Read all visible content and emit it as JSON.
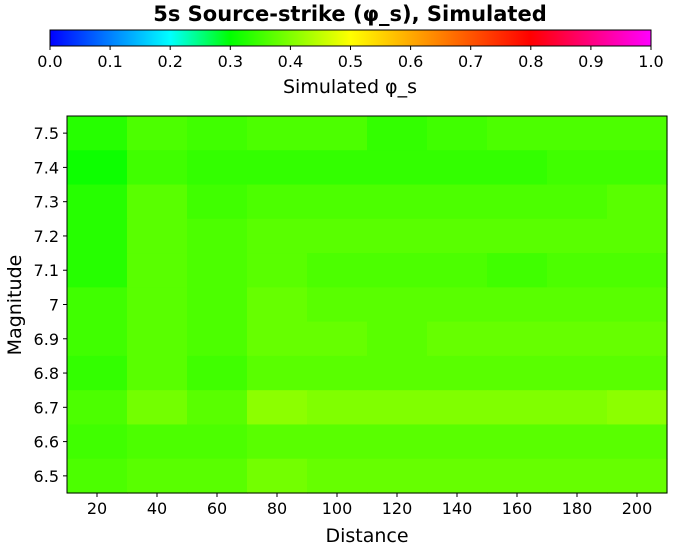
{
  "chart_data": {
    "type": "heatmap",
    "title": "5s Source-strike (φ_s), Simulated",
    "xlabel": "Distance",
    "ylabel": "Magnitude",
    "colorbar_label": "Simulated φ_s",
    "colorbar_range": [
      0.0,
      1.0
    ],
    "colorbar_ticks": [
      "0.0",
      "0.1",
      "0.2",
      "0.3",
      "0.4",
      "0.5",
      "0.6",
      "0.7",
      "0.8",
      "0.9",
      "1.0"
    ],
    "colormap": "hsv (blue to magenta)",
    "x": [
      20,
      40,
      60,
      80,
      100,
      120,
      140,
      160,
      180,
      200
    ],
    "y": [
      7.5,
      7.4,
      7.3,
      7.2,
      7.1,
      7.0,
      6.9,
      6.8,
      6.7,
      6.6,
      6.5
    ],
    "x_tick_labels": [
      "20",
      "40",
      "60",
      "80",
      "100",
      "120",
      "140",
      "160",
      "180",
      "200"
    ],
    "y_tick_labels": [
      "7.5",
      "7.4",
      "7.3",
      "7.2",
      "7.1",
      "7",
      "6.9",
      "6.8",
      "6.7",
      "6.6",
      "6.5"
    ],
    "values": [
      [
        0.33,
        0.36,
        0.35,
        0.36,
        0.36,
        0.34,
        0.35,
        0.36,
        0.36,
        0.36
      ],
      [
        0.31,
        0.35,
        0.34,
        0.34,
        0.34,
        0.34,
        0.34,
        0.34,
        0.35,
        0.35
      ],
      [
        0.33,
        0.37,
        0.35,
        0.36,
        0.36,
        0.36,
        0.36,
        0.36,
        0.36,
        0.37
      ],
      [
        0.33,
        0.37,
        0.36,
        0.37,
        0.37,
        0.37,
        0.37,
        0.37,
        0.37,
        0.37
      ],
      [
        0.33,
        0.37,
        0.36,
        0.37,
        0.36,
        0.36,
        0.36,
        0.35,
        0.36,
        0.36
      ],
      [
        0.35,
        0.37,
        0.36,
        0.38,
        0.37,
        0.37,
        0.37,
        0.37,
        0.37,
        0.37
      ],
      [
        0.35,
        0.37,
        0.36,
        0.38,
        0.38,
        0.37,
        0.38,
        0.38,
        0.38,
        0.38
      ],
      [
        0.34,
        0.37,
        0.35,
        0.37,
        0.37,
        0.37,
        0.37,
        0.37,
        0.37,
        0.37
      ],
      [
        0.36,
        0.39,
        0.37,
        0.41,
        0.4,
        0.4,
        0.4,
        0.4,
        0.4,
        0.41
      ],
      [
        0.35,
        0.36,
        0.36,
        0.37,
        0.37,
        0.37,
        0.37,
        0.37,
        0.37,
        0.37
      ],
      [
        0.36,
        0.37,
        0.37,
        0.39,
        0.38,
        0.38,
        0.38,
        0.38,
        0.38,
        0.38
      ]
    ]
  }
}
